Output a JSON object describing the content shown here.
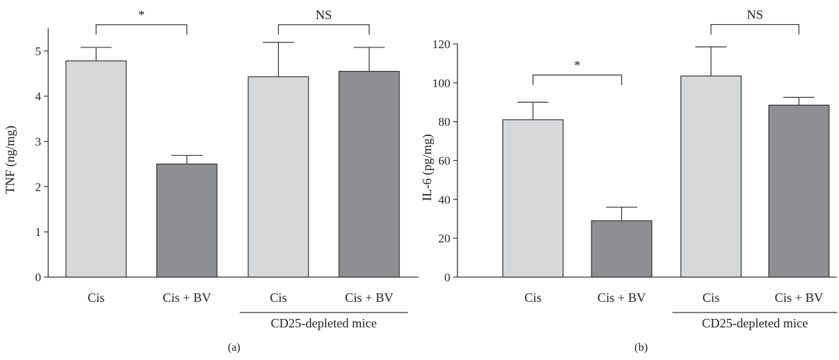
{
  "chart_data": [
    {
      "type": "bar",
      "panel_label": "(a)",
      "ylabel": "TNF (ng/mg)",
      "categories": [
        "Cis",
        "Cis + BV",
        "Cis",
        "Cis + BV"
      ],
      "values": [
        4.78,
        2.5,
        4.43,
        4.55
      ],
      "errors": [
        0.3,
        0.19,
        0.76,
        0.53
      ],
      "bar_colors": [
        "#d7d8da",
        "#8e8f92",
        "#d7d8da",
        "#8e8f92"
      ],
      "ylim": [
        0,
        5.5
      ],
      "yticks": [
        0,
        1,
        2,
        3,
        4,
        5
      ],
      "grid": false,
      "group_label": {
        "text": "CD25-depleted mice",
        "bars": [
          2,
          3
        ]
      },
      "significance": [
        {
          "bars": [
            0,
            1
          ],
          "label": "*",
          "y": 5.58
        },
        {
          "bars": [
            2,
            3
          ],
          "label": "NS",
          "y": 5.58
        }
      ]
    },
    {
      "type": "bar",
      "panel_label": "(b)",
      "ylabel": "IL-6 (pg/mg)",
      "categories": [
        "Cis",
        "Cis + BV",
        "Cis",
        "Cis + BV"
      ],
      "values": [
        81,
        29,
        103.5,
        88.5
      ],
      "errors": [
        9,
        7,
        15,
        4
      ],
      "bar_colors": [
        "#d7d8da",
        "#8e8f92",
        "#d7d8da",
        "#8e8f92"
      ],
      "ylim": [
        0,
        120
      ],
      "yticks": [
        0,
        20,
        40,
        60,
        80,
        100,
        120
      ],
      "grid": false,
      "group_label": {
        "text": "CD25-depleted mice",
        "bars": [
          2,
          3
        ]
      },
      "significance": [
        {
          "bars": [
            0,
            1
          ],
          "label": "*",
          "y": 104
        },
        {
          "bars": [
            2,
            3
          ],
          "label": "NS",
          "y": 130
        }
      ]
    }
  ]
}
